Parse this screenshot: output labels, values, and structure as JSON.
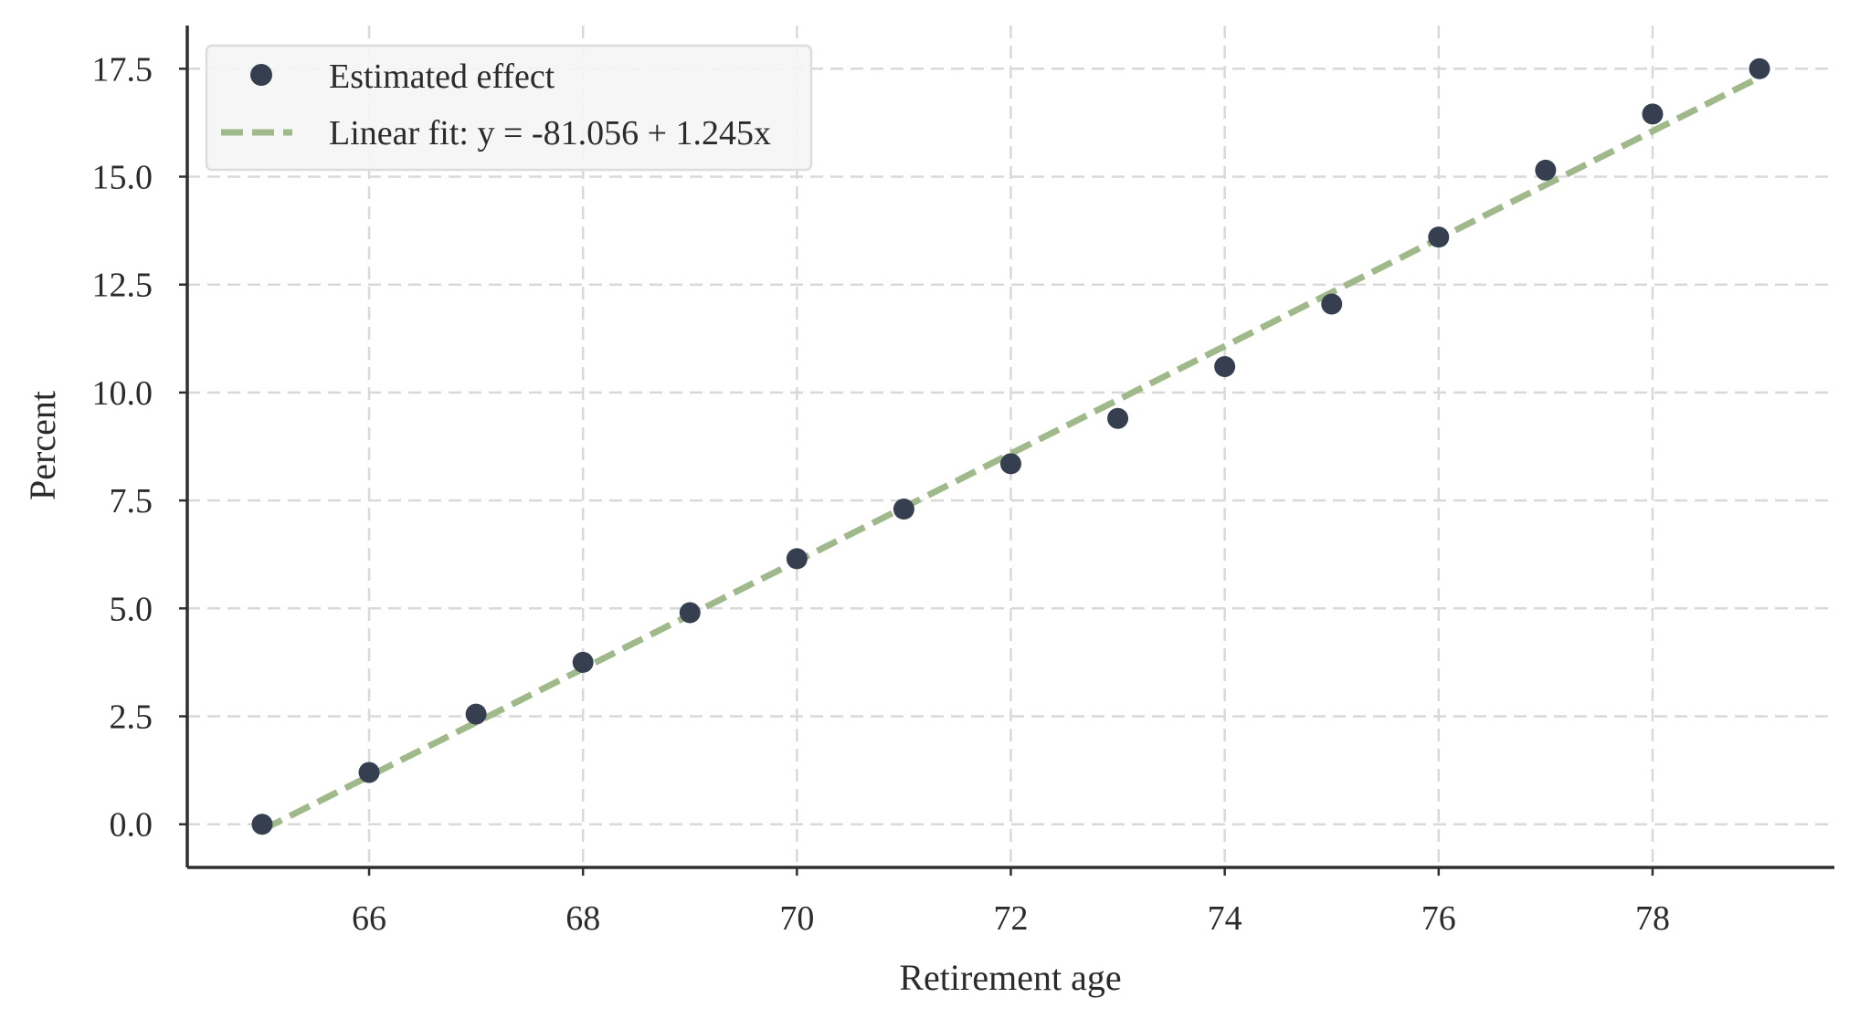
{
  "chart_data": {
    "type": "scatter",
    "title": "",
    "xlabel": "Retirement age",
    "ylabel": "Percent",
    "xlim": [
      64.3,
      79.7
    ],
    "ylim": [
      -1.0,
      18.5
    ],
    "xticks": [
      66,
      68,
      70,
      72,
      74,
      76,
      78
    ],
    "xtick_labels": [
      "66",
      "68",
      "70",
      "72",
      "74",
      "76",
      "78"
    ],
    "yticks": [
      0.0,
      2.5,
      5.0,
      7.5,
      10.0,
      12.5,
      15.0,
      17.5
    ],
    "ytick_labels": [
      "0.0",
      "2.5",
      "5.0",
      "7.5",
      "10.0",
      "12.5",
      "15.0",
      "17.5"
    ],
    "grid": true,
    "legend_position": "top-left",
    "series": [
      {
        "name": "Estimated effect",
        "kind": "scatter",
        "color": "#363f4f",
        "x": [
          65,
          66,
          67,
          68,
          69,
          70,
          71,
          72,
          73,
          74,
          75,
          76,
          77,
          78,
          79
        ],
        "y": [
          0.0,
          1.2,
          2.55,
          3.75,
          4.9,
          6.15,
          7.3,
          8.35,
          9.4,
          10.6,
          12.05,
          13.6,
          15.15,
          16.45,
          17.5
        ]
      },
      {
        "name": "Linear fit: y = -81.056 + 1.245x",
        "kind": "line",
        "style": "dashed",
        "color": "#9fb98a",
        "intercept": -81.056,
        "slope": 1.245,
        "x_range": [
          65,
          79
        ]
      }
    ]
  }
}
